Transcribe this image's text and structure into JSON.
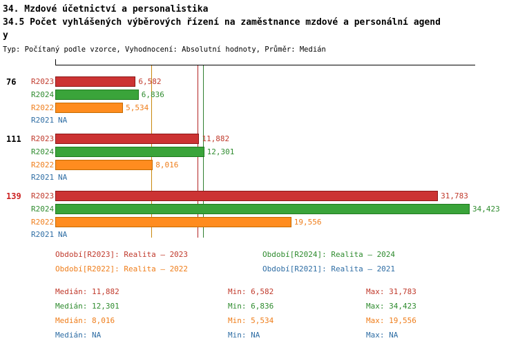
{
  "header": {
    "line1": "34. Mzdové účetnictví a personalistika",
    "line2": "34.5 Počet vyhlášených výběrových řízení na zaměstnance mzdové a personální agendy",
    "subtitle": "Typ: Počítaný podle vzorce, Vyhodnocení: Absolutní hodnoty, Průměr: Medián"
  },
  "colors": {
    "red": {
      "fill": "#cc3333",
      "border": "#8b1515",
      "text": "#c0392b"
    },
    "green": {
      "fill": "#3aa43a",
      "border": "#1f7a1f",
      "text": "#2e8b2e"
    },
    "orange": {
      "fill": "#ff8c1f",
      "border": "#c36a00",
      "text": "#ef7d1a"
    },
    "blue": {
      "fill": "#2e6da4",
      "border": "#1f4d78",
      "text": "#2e6da4"
    }
  },
  "chart_data": {
    "type": "bar",
    "orientation": "horizontal",
    "title": "34.5 Počet vyhlášených výběrových řízení na zaměstnance mzdové a personální agendy",
    "axis": {
      "min": 0,
      "max": 35000,
      "grid": false
    },
    "series": [
      {
        "key": "R2023",
        "color_key": "red"
      },
      {
        "key": "R2024",
        "color_key": "green"
      },
      {
        "key": "R2022",
        "color_key": "orange"
      },
      {
        "key": "R2021",
        "color_key": "blue"
      }
    ],
    "groups": [
      {
        "label": "76",
        "label_color": "#000000",
        "values": {
          "R2023": 6582,
          "R2024": 6836,
          "R2022": 5534,
          "R2021": null
        },
        "display": {
          "R2023": "6,582",
          "R2024": "6,836",
          "R2022": "5,534",
          "R2021": "NA"
        }
      },
      {
        "label": "111",
        "label_color": "#000000",
        "values": {
          "R2023": 11882,
          "R2024": 12301,
          "R2022": 8016,
          "R2021": null
        },
        "display": {
          "R2023": "11,882",
          "R2024": "12,301",
          "R2022": "8,016",
          "R2021": "NA"
        }
      },
      {
        "label": "139",
        "label_color": "#cc2222",
        "values": {
          "R2023": 31783,
          "R2024": 34423,
          "R2022": 19556,
          "R2021": null
        },
        "display": {
          "R2023": "31,783",
          "R2024": "34,423",
          "R2022": "19,556",
          "R2021": "NA"
        }
      }
    ],
    "median_lines": [
      {
        "value": 11882,
        "color": "#b22222"
      },
      {
        "value": 12301,
        "color": "#2e7d2e"
      },
      {
        "value": 8016,
        "color": "#c8860a"
      }
    ]
  },
  "legend": [
    {
      "label": "Období[R2023]: Realita – 2023",
      "color": "#c0392b"
    },
    {
      "label": "Období[R2024]: Realita – 2024",
      "color": "#2e8b2e"
    },
    {
      "label": "Období[R2022]: Realita – 2022",
      "color": "#ef7d1a"
    },
    {
      "label": "Období[R2021]: Realita – 2021",
      "color": "#2e6da4"
    }
  ],
  "stats": [
    {
      "median": "Medián: 11,882",
      "min": "Min: 6,582",
      "max": "Max: 31,783",
      "color": "#c0392b"
    },
    {
      "median": "Medián: 12,301",
      "min": "Min: 6,836",
      "max": "Max: 34,423",
      "color": "#2e8b2e"
    },
    {
      "median": "Medián: 8,016",
      "min": "Min: 5,534",
      "max": "Max: 19,556",
      "color": "#ef7d1a"
    },
    {
      "median": "Medián: NA",
      "min": "Min: NA",
      "max": "Max: NA",
      "color": "#2e6da4"
    }
  ]
}
